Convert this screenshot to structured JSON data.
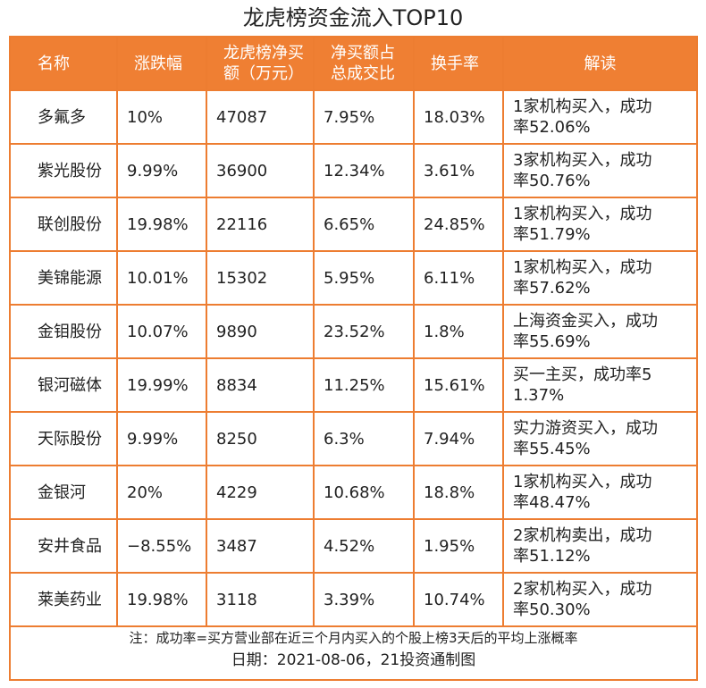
{
  "title": "龙虎榜资金流入TOP10",
  "table": {
    "columns": [
      "名称",
      "涨跌幅",
      "龙虎榜净买\n额（万元）",
      "净买额占\n总成交比",
      "换手率",
      "解读"
    ],
    "rows": [
      [
        "多氟多",
        "10%",
        "47087",
        "7.95%",
        "18.03%",
        "1家机构买入，成功\n率52.06%"
      ],
      [
        "紫光股份",
        "9.99%",
        "36900",
        "12.34%",
        "3.61%",
        "3家机构买入，成功\n率50.76%"
      ],
      [
        "联创股份",
        "19.98%",
        "22116",
        "6.65%",
        "24.85%",
        "1家机构买入，成功\n率51.79%"
      ],
      [
        "美锦能源",
        "10.01%",
        "15302",
        "5.95%",
        "6.11%",
        "1家机构买入，成功\n率57.62%"
      ],
      [
        "金钼股份",
        "10.07%",
        "9890",
        "23.52%",
        "1.8%",
        "上海资金买入，成功\n率55.69%"
      ],
      [
        "银河磁体",
        "19.99%",
        "8834",
        "11.25%",
        "15.61%",
        "买一主买，成功率5\n1.37%"
      ],
      [
        "天际股份",
        "9.99%",
        "8250",
        "6.3%",
        "7.94%",
        "实力游资买入，成功\n率55.45%"
      ],
      [
        "金银河",
        "20%",
        "4229",
        "10.68%",
        "18.8%",
        "1家机构买入，成功\n率48.47%"
      ],
      [
        "安井食品",
        "−8.55%",
        "3487",
        "4.52%",
        "1.95%",
        "2家机构卖出，成功\n率51.12%"
      ],
      [
        "莱美药业",
        "19.98%",
        "3118",
        "3.39%",
        "10.74%",
        "2家机构买入，成功\n率50.30%"
      ]
    ]
  },
  "footer": {
    "note": "注：成功率=买方营业部在近三个月内买入的个股上榜3天后的平均上涨概率",
    "date": "日期：2021-08-06，21投资通制图"
  }
}
